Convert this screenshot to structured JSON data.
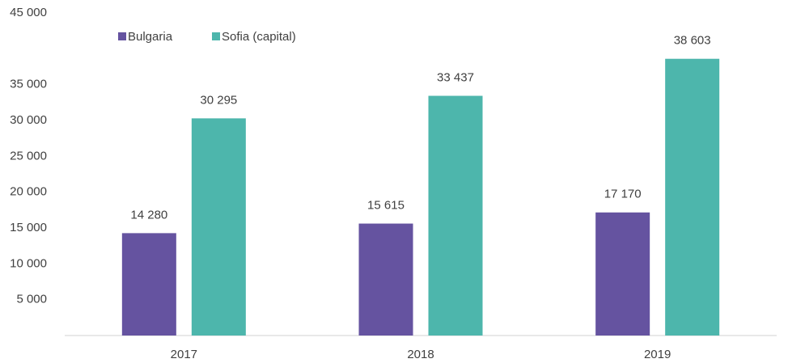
{
  "chart_data": {
    "type": "bar",
    "categories": [
      "2017",
      "2018",
      "2019"
    ],
    "series": [
      {
        "name": "Bulgaria",
        "color": "#6553a0",
        "values": [
          14280,
          15615,
          17170
        ],
        "value_labels": [
          "14 280",
          "15 615",
          "17 170"
        ]
      },
      {
        "name": "Sofia (capital)",
        "color": "#4db6ac",
        "values": [
          30295,
          33437,
          38603
        ],
        "value_labels": [
          "30 295",
          "33 437",
          "38 603"
        ]
      }
    ],
    "ylim": [
      0,
      45000
    ],
    "yticks": [
      {
        "value": 5000,
        "label": "5 000"
      },
      {
        "value": 10000,
        "label": "10 000"
      },
      {
        "value": 15000,
        "label": "15 000"
      },
      {
        "value": 20000,
        "label": "20 000"
      },
      {
        "value": 25000,
        "label": "25 000"
      },
      {
        "value": 30000,
        "label": "30 000"
      },
      {
        "value": 35000,
        "label": "35 000"
      },
      {
        "value": 45000,
        "label": "45 000"
      }
    ],
    "legend": "top-left"
  }
}
